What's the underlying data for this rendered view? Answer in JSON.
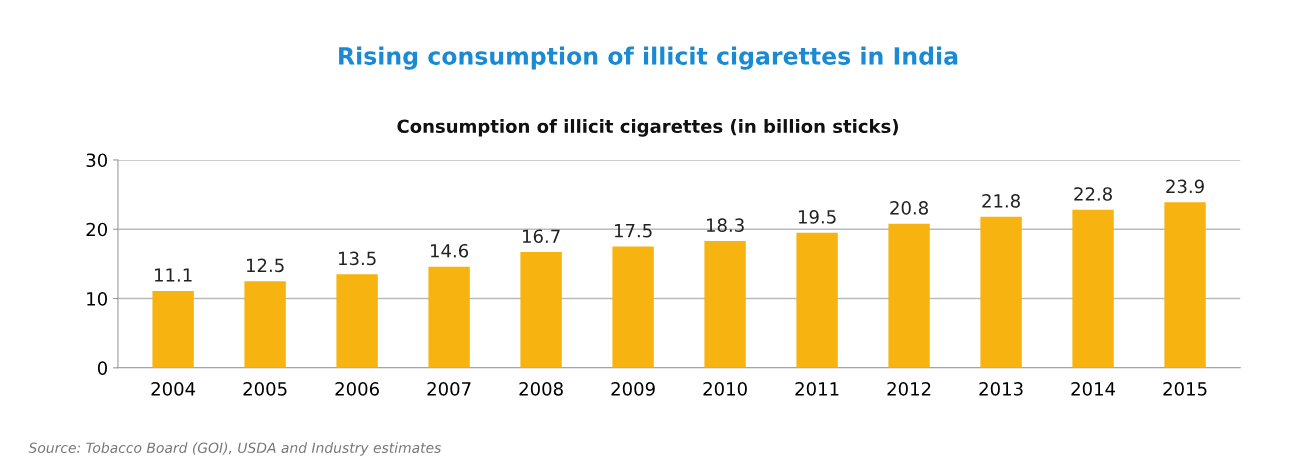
{
  "chart_data": {
    "type": "bar",
    "title": "Rising consumption of illicit cigarettes in India",
    "subtitle": "Consumption of illicit cigarettes (in billion sticks)",
    "categories": [
      "2004",
      "2005",
      "2006",
      "2007",
      "2008",
      "2009",
      "2010",
      "2011",
      "2012",
      "2013",
      "2014",
      "2015"
    ],
    "values": [
      11.1,
      12.5,
      13.5,
      14.6,
      16.7,
      17.5,
      18.3,
      19.5,
      20.8,
      21.8,
      22.8,
      23.9
    ],
    "color": "#f7b30f",
    "ylim": [
      0,
      30
    ],
    "yticks": [
      0,
      10,
      20,
      30
    ],
    "grid": "y",
    "data_labels": true,
    "annotations": [
      "Source: Tobacco Board (GOI), USDA and Industry estimates"
    ]
  }
}
